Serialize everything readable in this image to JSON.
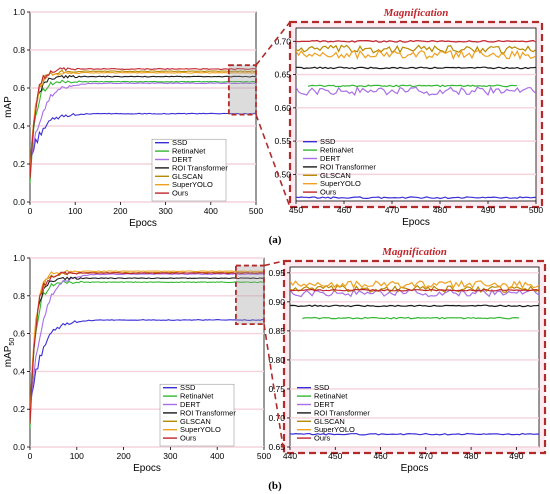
{
  "figure": {
    "caption_a": "(a)",
    "caption_b": "(b)"
  },
  "colors": {
    "SSD": "#3a2fd6",
    "RetinaNet": "#33b833",
    "DERT": "#a86ee8",
    "ROI Transformer": "#1a1a1a",
    "GLSCAN": "#b88a00",
    "SuperYOLO": "#f0a020",
    "Ours": "#c0262e",
    "accent": "#b22a2a",
    "pink_bg": "#f6c9d6"
  },
  "chart_data": [
    {
      "id": "a-main",
      "type": "line",
      "title": "",
      "xlabel": "Epocs",
      "ylabel": "mAP",
      "xlim": [
        0,
        500
      ],
      "ylim": [
        0.0,
        1.0
      ],
      "xticks": [
        0,
        100,
        200,
        300,
        400,
        500
      ],
      "yticks": [
        0.0,
        0.2,
        0.4,
        0.6,
        0.8,
        1.0
      ],
      "legend": "bottom-right",
      "magnify_region": {
        "x": [
          440,
          500
        ],
        "y": [
          0.46,
          0.72
        ]
      },
      "series": [
        {
          "name": "SSD",
          "final": 0.465
        },
        {
          "name": "RetinaNet",
          "final": 0.633
        },
        {
          "name": "DERT",
          "final": 0.625
        },
        {
          "name": "ROI Transformer",
          "final": 0.66
        },
        {
          "name": "GLSCAN",
          "final": 0.688
        },
        {
          "name": "SuperYOLO",
          "final": 0.68
        },
        {
          "name": "Ours",
          "final": 0.7
        }
      ]
    },
    {
      "id": "a-zoom",
      "type": "line",
      "title": "Magnification",
      "xlabel": "Epocs",
      "ylabel": "",
      "xlim": [
        450,
        500
      ],
      "ylim": [
        0.46,
        0.72
      ],
      "xticks": [
        450,
        460,
        470,
        480,
        490,
        500
      ],
      "yticks": [
        0.5,
        0.55,
        0.6,
        0.65,
        0.7
      ],
      "legend": "bottom-left",
      "series": [
        {
          "name": "SSD",
          "final": 0.465
        },
        {
          "name": "RetinaNet",
          "final": 0.633
        },
        {
          "name": "DERT",
          "final": 0.625
        },
        {
          "name": "ROI Transformer",
          "final": 0.66
        },
        {
          "name": "GLSCAN",
          "final": 0.688
        },
        {
          "name": "SuperYOLO",
          "final": 0.68
        },
        {
          "name": "Ours",
          "final": 0.7
        }
      ]
    },
    {
      "id": "b-main",
      "type": "line",
      "title": "",
      "xlabel": "Epocs",
      "ylabel": "mAP50",
      "xlim": [
        0,
        500
      ],
      "ylim": [
        0.0,
        1.0
      ],
      "xticks": [
        0,
        100,
        200,
        300,
        400,
        500
      ],
      "yticks": [
        0.0,
        0.2,
        0.4,
        0.6,
        0.8,
        1.0
      ],
      "legend": "bottom-right",
      "magnify_region": {
        "x": [
          440,
          500
        ],
        "y": [
          0.65,
          0.96
        ]
      },
      "series": [
        {
          "name": "SSD",
          "final": 0.672
        },
        {
          "name": "RetinaNet",
          "final": 0.872
        },
        {
          "name": "DERT",
          "final": 0.915
        },
        {
          "name": "ROI Transformer",
          "final": 0.893
        },
        {
          "name": "GLSCAN",
          "final": 0.922
        },
        {
          "name": "SuperYOLO",
          "final": 0.93
        },
        {
          "name": "Ours",
          "final": 0.92
        }
      ]
    },
    {
      "id": "b-zoom",
      "type": "line",
      "title": "Magnification",
      "xlabel": "Epocs",
      "ylabel": "",
      "xlim": [
        440,
        495
      ],
      "ylim": [
        0.65,
        0.96
      ],
      "xticks": [
        440,
        450,
        460,
        470,
        480,
        490
      ],
      "yticks": [
        0.65,
        0.7,
        0.75,
        0.8,
        0.85,
        0.9,
        0.95
      ],
      "legend": "bottom-left",
      "series": [
        {
          "name": "SSD",
          "final": 0.672
        },
        {
          "name": "RetinaNet",
          "final": 0.872
        },
        {
          "name": "DERT",
          "final": 0.915
        },
        {
          "name": "ROI Transformer",
          "final": 0.893
        },
        {
          "name": "GLSCAN",
          "final": 0.922
        },
        {
          "name": "SuperYOLO",
          "final": 0.93
        },
        {
          "name": "Ours",
          "final": 0.92
        }
      ]
    }
  ]
}
